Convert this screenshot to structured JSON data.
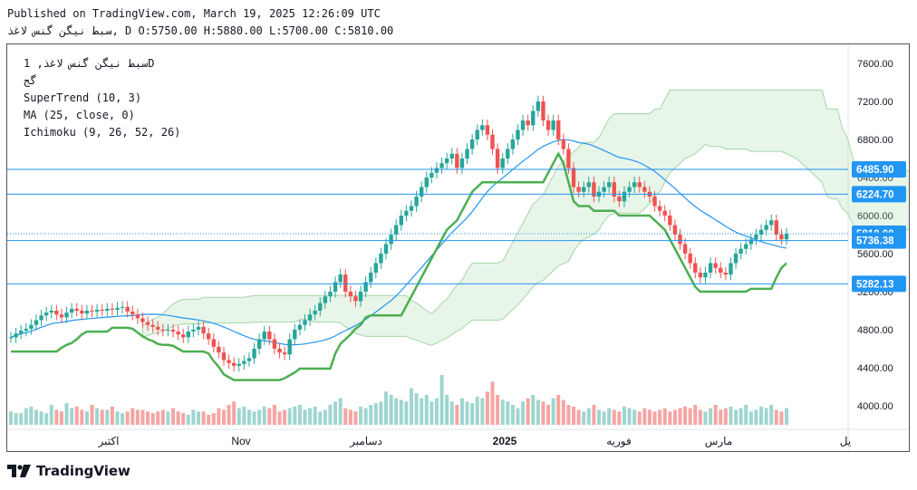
{
  "header": {
    "published": "Published on TradingView.com, March 19, 2025 12:26:09 UTC",
    "symbol": "سبط نیگن گنس لاغذ",
    "timeframe": "D",
    "ohlc": "O:5750.00 H:5880.00 L:5700.00 C:5810.00"
  },
  "legend": {
    "symbol_line": "سبط نیگن گنس لاغذ, 1D",
    "sub": "گج",
    "supertrend": "SuperTrend (10, 3)",
    "ma": "MA (25, close, 0)",
    "ichimoku": "Ichimoku (9, 26, 52, 26)"
  },
  "brand": {
    "name": "TradingView",
    "icon": "tradingview-logo-icon"
  },
  "colors": {
    "up": "#26a69a",
    "down": "#ef5350",
    "supertrend_up": "#4caf50",
    "supertrend_down": "#a04c4c",
    "ma": "#2196f3",
    "hline": "#2196f3"
  },
  "chart_data": {
    "type": "candlestick",
    "ylim": [
      3800,
      7800
    ],
    "y_ticks": [
      "7600.00",
      "7200.00",
      "6800.00",
      "6400.00",
      "6000.00",
      "5600.00",
      "5200.00",
      "4800.00",
      "4400.00",
      "4000.00"
    ],
    "x_labels": [
      "اکتبر",
      "Nov",
      "دسامبر",
      "2025",
      "فوریه",
      "مارس",
      "یل"
    ],
    "price_lines": [
      {
        "value": 6485.9,
        "label": "6485.90"
      },
      {
        "value": 6224.7,
        "label": "6224.70"
      },
      {
        "value": 5810.0,
        "label": "5810.00",
        "style": "dotted"
      },
      {
        "value": 5736.38,
        "label": "5736.38"
      },
      {
        "value": 5282.13,
        "label": "5282.13"
      }
    ],
    "closes": [
      4720,
      4760,
      4790,
      4810,
      4850,
      4900,
      4950,
      4980,
      5000,
      4960,
      4930,
      4980,
      5020,
      5000,
      4970,
      5000,
      4990,
      5010,
      5000,
      5020,
      5010,
      5030,
      5040,
      4990,
      4960,
      4920,
      4880,
      4850,
      4830,
      4800,
      4790,
      4800,
      4780,
      4750,
      4720,
      4780,
      4800,
      4830,
      4760,
      4700,
      4620,
      4560,
      4480,
      4450,
      4420,
      4440,
      4470,
      4500,
      4600,
      4700,
      4780,
      4700,
      4600,
      4560,
      4540,
      4700,
      4800,
      4850,
      4900,
      4960,
      5000,
      5080,
      5150,
      5200,
      5300,
      5380,
      5200,
      5150,
      5100,
      5200,
      5300,
      5400,
      5500,
      5600,
      5700,
      5800,
      5900,
      6000,
      6050,
      6100,
      6200,
      6300,
      6400,
      6450,
      6500,
      6550,
      6600,
      6650,
      6500,
      6600,
      6700,
      6800,
      6900,
      6950,
      6850,
      6700,
      6500,
      6600,
      6700,
      6800,
      6900,
      7000,
      6950,
      7100,
      7200,
      7000,
      6900,
      7000,
      6800,
      6700,
      6500,
      6300,
      6250,
      6300,
      6350,
      6200,
      6250,
      6300,
      6350,
      6200,
      6150,
      6250,
      6300,
      6350,
      6300,
      6250,
      6200,
      6100,
      6050,
      6000,
      5900,
      5800,
      5700,
      5600,
      5500,
      5400,
      5350,
      5400,
      5500,
      5450,
      5400,
      5380,
      5500,
      5600,
      5650,
      5700,
      5750,
      5800,
      5850,
      5900,
      5950,
      5800,
      5750,
      5810
    ],
    "volumes": [
      8,
      7,
      7,
      10,
      11,
      9,
      8,
      7,
      12,
      9,
      8,
      13,
      10,
      11,
      9,
      8,
      12,
      10,
      9,
      9,
      11,
      8,
      7,
      8,
      10,
      9,
      9,
      8,
      7,
      8,
      9,
      8,
      10,
      8,
      7,
      6,
      9,
      8,
      8,
      6,
      7,
      10,
      9,
      12,
      14,
      10,
      11,
      9,
      8,
      9,
      11,
      10,
      12,
      8,
      9,
      10,
      11,
      12,
      9,
      10,
      11,
      8,
      9,
      12,
      14,
      16,
      10,
      9,
      8,
      11,
      10,
      12,
      13,
      14,
      20,
      18,
      16,
      15,
      14,
      22,
      19,
      16,
      18,
      14,
      16,
      30,
      18,
      14,
      12,
      16,
      14,
      13,
      17,
      16,
      20,
      26,
      18,
      15,
      14,
      12,
      10,
      14,
      16,
      18,
      15,
      14,
      12,
      16,
      18,
      15,
      12,
      11,
      9,
      8,
      10,
      12,
      9,
      8,
      10,
      9,
      8,
      11,
      10,
      9,
      8,
      10,
      9,
      8,
      9,
      10,
      8,
      9,
      10,
      11,
      10,
      12,
      9,
      8,
      10,
      12,
      9,
      10,
      11,
      9,
      10,
      12,
      8,
      9,
      11,
      10,
      12,
      9,
      8,
      10
    ]
  }
}
